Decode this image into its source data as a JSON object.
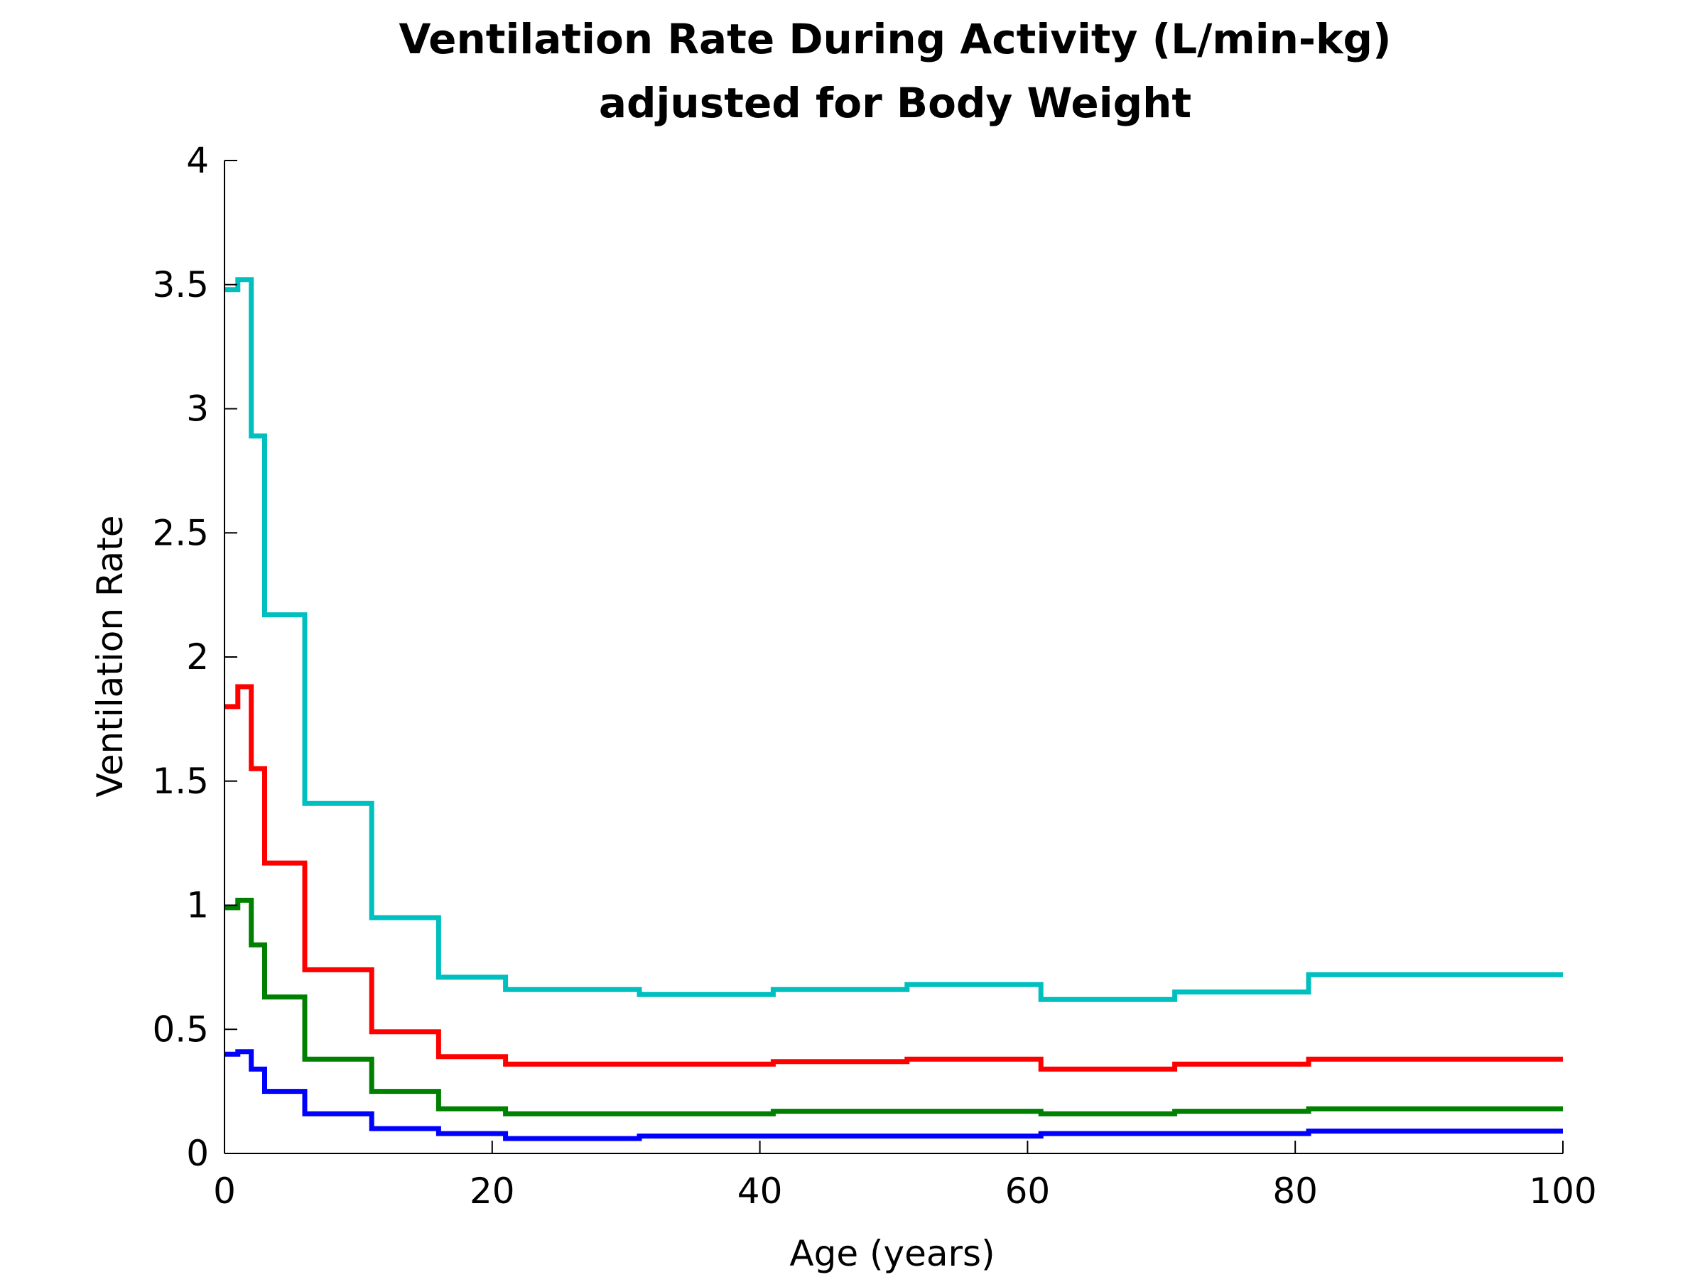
{
  "chart_data": {
    "type": "line",
    "title": [
      "Ventilation Rate During Activity (L/min-kg)",
      "adjusted for Body Weight"
    ],
    "xlabel": "Age (years)",
    "ylabel": "Ventilation Rate",
    "xlim": [
      0,
      100
    ],
    "ylim": [
      0,
      4
    ],
    "xticks": [
      0,
      20,
      40,
      60,
      80,
      100
    ],
    "xtick_labels": [
      "0",
      "20",
      "40",
      "60",
      "80",
      "100"
    ],
    "yticks": [
      0,
      0.5,
      1,
      1.5,
      2,
      2.5,
      3,
      3.5,
      4
    ],
    "ytick_labels": [
      "0",
      "0.5",
      "1",
      "1.5",
      "2",
      "2.5",
      "3",
      "3.5",
      "4"
    ],
    "grid": false,
    "step": true,
    "series": [
      {
        "color": "#00BFBF",
        "breaks": [
          0,
          1,
          2,
          3,
          6,
          11,
          16,
          21,
          31,
          41,
          51,
          61,
          71,
          81,
          100
        ],
        "values": [
          3.48,
          3.52,
          2.89,
          2.17,
          1.41,
          0.95,
          0.71,
          0.66,
          0.64,
          0.66,
          0.68,
          0.62,
          0.65,
          0.72
        ]
      },
      {
        "color": "#FF0000",
        "breaks": [
          0,
          1,
          2,
          3,
          6,
          11,
          16,
          21,
          31,
          41,
          51,
          61,
          71,
          81,
          100
        ],
        "values": [
          1.8,
          1.88,
          1.55,
          1.17,
          0.74,
          0.49,
          0.39,
          0.36,
          0.36,
          0.37,
          0.38,
          0.34,
          0.36,
          0.38
        ]
      },
      {
        "color": "#008000",
        "breaks": [
          0,
          1,
          2,
          3,
          6,
          11,
          16,
          21,
          31,
          41,
          51,
          61,
          71,
          81,
          100
        ],
        "values": [
          0.99,
          1.02,
          0.84,
          0.63,
          0.38,
          0.25,
          0.18,
          0.16,
          0.16,
          0.17,
          0.17,
          0.16,
          0.17,
          0.18
        ]
      },
      {
        "color": "#0000FF",
        "breaks": [
          0,
          1,
          2,
          3,
          6,
          11,
          16,
          21,
          31,
          41,
          51,
          61,
          71,
          81,
          100
        ],
        "values": [
          0.4,
          0.41,
          0.34,
          0.25,
          0.16,
          0.1,
          0.08,
          0.06,
          0.07,
          0.07,
          0.07,
          0.08,
          0.08,
          0.09
        ]
      }
    ]
  }
}
